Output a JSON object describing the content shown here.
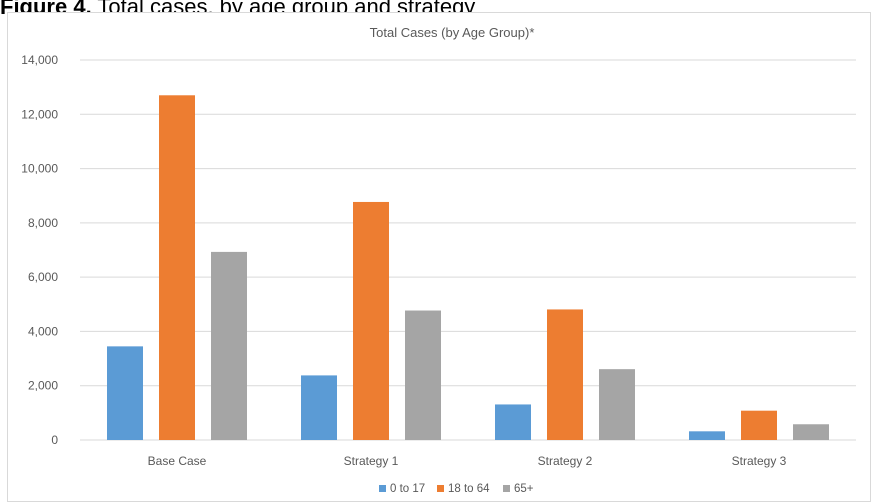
{
  "caption": {
    "label": "Figure 4.",
    "text": "Total cases, by age group and strategy"
  },
  "colors": {
    "series_0": "#5b9bd5",
    "series_1": "#ed7d31",
    "series_2": "#a5a5a5",
    "gridline": "#d9d9d9",
    "text": "#595959"
  },
  "chart_data": {
    "type": "bar",
    "title": "Total Cases (by Age Group)*",
    "xlabel": "",
    "ylabel": "",
    "categories": [
      "Base Case",
      "Strategy 1",
      "Strategy 2",
      "Strategy 3"
    ],
    "series": [
      {
        "name": "0 to 17",
        "values": [
          3450,
          2380,
          1310,
          320
        ]
      },
      {
        "name": "18 to 64",
        "values": [
          12700,
          8770,
          4810,
          1080
        ]
      },
      {
        "name": "65+",
        "values": [
          6930,
          4770,
          2610,
          580
        ]
      }
    ],
    "ylim": [
      0,
      14000
    ],
    "yticks": [
      "0",
      "2,000",
      "4,000",
      "6,000",
      "8,000",
      "10,000",
      "12,000",
      "14,000"
    ],
    "grid": true,
    "legend_position": "bottom"
  }
}
